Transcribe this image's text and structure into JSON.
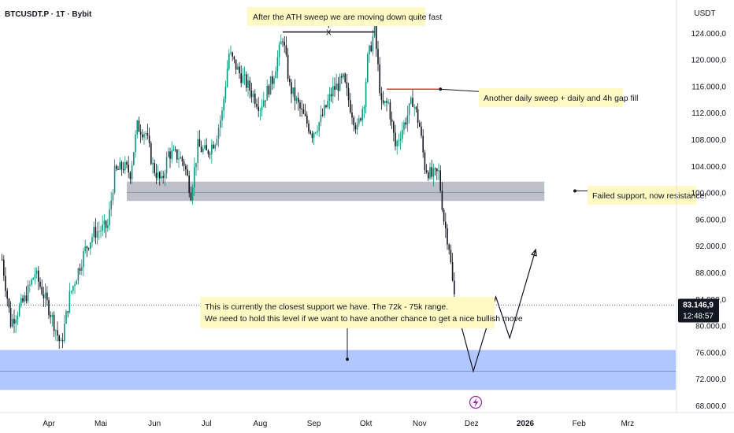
{
  "header": {
    "symbol": "BTCUSDT.P · 1T · Bybit",
    "currency": "USDT"
  },
  "price_label": {
    "value": "83.146,9",
    "countdown": "12:48:57"
  },
  "colors": {
    "bull": "#089981",
    "bear": "#131722",
    "resistance_zone": "#b2b5be",
    "support_zone": "#a8c1ff",
    "sweep_line": "#e53935",
    "note_bg": "#fff9c4",
    "projection": "#131722",
    "price_tag": "#131722"
  },
  "annotations": {
    "top": "After the ATH sweep we are moving down quite fast",
    "sweep_marker": "X",
    "sweep": "Another daily sweep + daily and 4h gap fill",
    "resistance": "Failed support, now resistance!",
    "support_line1": "This is currently the closest support we have. The 72k - 75k range.",
    "support_line2": "We need to hold this level if we want to have another chance to get a nice bullish move"
  },
  "event_icon": "lightning-icon",
  "chart_data": {
    "type": "candlestick",
    "title": "BTCUSDT.P · 1T · Bybit",
    "ylabel": "USDT",
    "ylim": [
      67000,
      129000
    ],
    "y_ticks": [
      68000,
      72000,
      76000,
      80000,
      84000,
      88000,
      92000,
      96000,
      100000,
      104000,
      108000,
      112000,
      116000,
      120000,
      124000
    ],
    "y_tick_labels": [
      "68.000,0",
      "72.000,0",
      "76.000,0",
      "80.000,0",
      "84.000,0",
      "88.000,0",
      "92.000,0",
      "96.000,0",
      "100.000,0",
      "104.000,0",
      "108.000,0",
      "112.000,0",
      "116.000,0",
      "120.000,0",
      "124.000,0"
    ],
    "x_labels": [
      "Apr",
      "Mai",
      "Jun",
      "Jul",
      "Aug",
      "Sep",
      "Okt",
      "Nov",
      "Dez",
      "2026",
      "Feb",
      "Mrz"
    ],
    "x_label_dates": [
      "2025-04-01",
      "2025-05-01",
      "2025-06-01",
      "2025-07-01",
      "2025-08-01",
      "2025-09-01",
      "2025-10-01",
      "2025-11-01",
      "2025-12-01",
      "2026-01-01",
      "2026-02-01",
      "2026-03-01"
    ],
    "grid": false,
    "current_price": 83146.9,
    "path_close": [
      [
        "2025-03-05",
        90000
      ],
      [
        "2025-03-10",
        80500
      ],
      [
        "2025-03-18",
        84000
      ],
      [
        "2025-03-24",
        88000
      ],
      [
        "2025-04-02",
        82000
      ],
      [
        "2025-04-08",
        77000
      ],
      [
        "2025-04-13",
        84500
      ],
      [
        "2025-04-22",
        91500
      ],
      [
        "2025-04-27",
        94000
      ],
      [
        "2025-05-05",
        95000
      ],
      [
        "2025-05-09",
        103000
      ],
      [
        "2025-05-14",
        104000
      ],
      [
        "2025-05-18",
        103000
      ],
      [
        "2025-05-22",
        110000
      ],
      [
        "2025-05-27",
        109000
      ],
      [
        "2025-05-31",
        104000
      ],
      [
        "2025-06-05",
        101500
      ],
      [
        "2025-06-09",
        106000
      ],
      [
        "2025-06-15",
        105500
      ],
      [
        "2025-06-18",
        104500
      ],
      [
        "2025-06-22",
        100000
      ],
      [
        "2025-06-26",
        107000
      ],
      [
        "2025-07-01",
        106000
      ],
      [
        "2025-07-06",
        108000
      ],
      [
        "2025-07-10",
        112000
      ],
      [
        "2025-07-14",
        121000
      ],
      [
        "2025-07-20",
        118000
      ],
      [
        "2025-07-25",
        116000
      ],
      [
        "2025-08-01",
        113000
      ],
      [
        "2025-08-08",
        117000
      ],
      [
        "2025-08-14",
        123500
      ],
      [
        "2025-08-18",
        116000
      ],
      [
        "2025-08-25",
        112000
      ],
      [
        "2025-08-31",
        109000
      ],
      [
        "2025-09-05",
        111000
      ],
      [
        "2025-09-12",
        115500
      ],
      [
        "2025-09-18",
        117000
      ],
      [
        "2025-09-22",
        113000
      ],
      [
        "2025-09-26",
        109500
      ],
      [
        "2025-09-30",
        114000
      ],
      [
        "2025-10-02",
        120000
      ],
      [
        "2025-10-06",
        124500
      ],
      [
        "2025-10-10",
        113000
      ],
      [
        "2025-10-14",
        113500
      ],
      [
        "2025-10-18",
        107000
      ],
      [
        "2025-10-24",
        111000
      ],
      [
        "2025-10-28",
        114000
      ],
      [
        "2025-11-01",
        110000
      ],
      [
        "2025-11-04",
        104000
      ],
      [
        "2025-11-08",
        102500
      ],
      [
        "2025-11-12",
        103000
      ],
      [
        "2025-11-15",
        96000
      ],
      [
        "2025-11-18",
        92000
      ],
      [
        "2025-11-20",
        86500
      ],
      [
        "2025-11-21",
        84500
      ]
    ],
    "sweep_high_level": 115600,
    "ath_sweep_level": 124200,
    "resistance_zone": [
      98800,
      101700
    ],
    "support_zone": [
      70400,
      76400
    ],
    "projection": [
      [
        "2025-11-21",
        84000
      ],
      [
        "2025-12-02",
        73200
      ],
      [
        "2025-12-15",
        84400
      ],
      [
        "2025-12-23",
        78200
      ],
      [
        "2026-01-07",
        91500
      ]
    ]
  }
}
